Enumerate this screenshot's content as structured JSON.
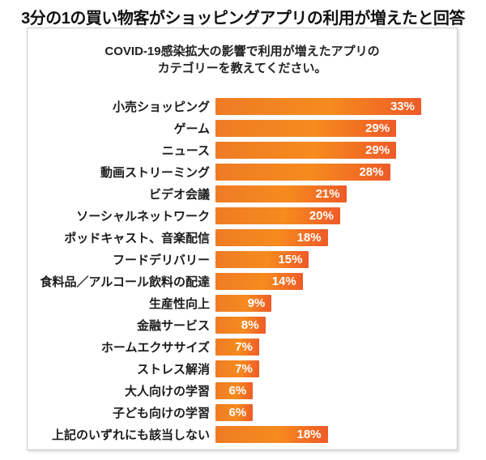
{
  "title": "3分の1の買い物客がショッピングアプリの利用が増えたと回答",
  "question": {
    "line1": "COVID-19感染拡大の影響で利用が増えたアプリの",
    "line2": "カテゴリーを教えてください。"
  },
  "chart_data": {
    "type": "bar",
    "orientation": "horizontal",
    "title": "COVID-19感染拡大の影響で利用が増えたアプリのカテゴリーを教えてください。",
    "categories": [
      "小売ショッピング",
      "ゲーム",
      "ニュース",
      "動画ストリーミング",
      "ビデオ会議",
      "ソーシャルネットワーク",
      "ポッドキャスト、音楽配信",
      "フードデリバリー",
      "食料品／アルコール飲料の配達",
      "生産性向上",
      "金融サービス",
      "ホームエクササイズ",
      "ストレス解消",
      "大人向けの学習",
      "子ども向けの学習",
      "上記のいずれにも該当しない"
    ],
    "values": [
      33,
      29,
      29,
      28,
      21,
      20,
      18,
      15,
      14,
      9,
      8,
      7,
      7,
      6,
      6,
      18
    ],
    "value_suffix": "%",
    "xlim": [
      0,
      33
    ],
    "grid": false,
    "legend": false,
    "axis_labels_visible": false,
    "bar_gradient": [
      "#ef7b25",
      "#f68b1e",
      "#ee5a28"
    ],
    "value_label_color": "#ffffff",
    "category_label_color": "#1c1c1c"
  },
  "colors": {
    "background": "#ffffff",
    "panel_border": "#c9c9c9",
    "title_color": "#111111"
  }
}
